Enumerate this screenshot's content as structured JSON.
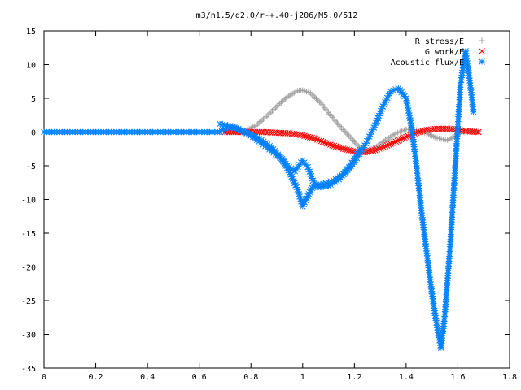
{
  "chart_data": {
    "type": "scatter",
    "title": "m3/n1.5/q2.0/r-+.40-j206/M5.0/512",
    "xlabel": "",
    "ylabel": "",
    "xlim": [
      0,
      1.8
    ],
    "ylim": [
      -35,
      15
    ],
    "grid": false,
    "legend": "top-right",
    "x_ticks": [
      {
        "value": 0,
        "label": "0"
      },
      {
        "value": 0.2,
        "label": "0.2"
      },
      {
        "value": 0.4,
        "label": "0.4"
      },
      {
        "value": 0.6,
        "label": "0.6"
      },
      {
        "value": 0.8,
        "label": "0.8"
      },
      {
        "value": 1.0,
        "label": "1"
      },
      {
        "value": 1.2,
        "label": "1.2"
      },
      {
        "value": 1.4,
        "label": "1.4"
      },
      {
        "value": 1.6,
        "label": "1.6"
      },
      {
        "value": 1.8,
        "label": "1.8"
      }
    ],
    "y_ticks": [
      {
        "value": 15,
        "label": "15"
      },
      {
        "value": 10,
        "label": "10"
      },
      {
        "value": 5,
        "label": "5"
      },
      {
        "value": 0,
        "label": "0"
      },
      {
        "value": -5,
        "label": "-5"
      },
      {
        "value": -10,
        "label": "-10"
      },
      {
        "value": -15,
        "label": "-15"
      },
      {
        "value": -20,
        "label": "-20"
      },
      {
        "value": -25,
        "label": "-25"
      },
      {
        "value": -30,
        "label": "-30"
      },
      {
        "value": -35,
        "label": "-35"
      }
    ],
    "series": [
      {
        "name": "R stress/E",
        "marker": "plus",
        "color": "#a0a0a0",
        "points": [
          [
            0.7,
            0
          ],
          [
            0.74,
            0
          ],
          [
            0.78,
            0.2
          ],
          [
            0.82,
            1
          ],
          [
            0.86,
            2.3
          ],
          [
            0.9,
            3.8
          ],
          [
            0.94,
            5.2
          ],
          [
            0.98,
            6.1
          ],
          [
            1.0,
            6.2
          ],
          [
            1.03,
            5.8
          ],
          [
            1.07,
            4.3
          ],
          [
            1.11,
            2.4
          ],
          [
            1.15,
            0.6
          ],
          [
            1.19,
            -1
          ],
          [
            1.22,
            -2.3
          ],
          [
            1.25,
            -2.7
          ],
          [
            1.28,
            -2.3
          ],
          [
            1.32,
            -1.2
          ],
          [
            1.36,
            -0.2
          ],
          [
            1.4,
            0.4
          ],
          [
            1.44,
            0.3
          ],
          [
            1.48,
            -0.2
          ],
          [
            1.52,
            -0.9
          ],
          [
            1.56,
            -1.2
          ],
          [
            1.6,
            -0.4
          ],
          [
            1.64,
            0.2
          ],
          [
            1.68,
            0.1
          ]
        ]
      },
      {
        "name": "G work/E",
        "marker": "cross",
        "color": "#ff0000",
        "points": [
          [
            0.7,
            0
          ],
          [
            0.75,
            0
          ],
          [
            0.8,
            0
          ],
          [
            0.85,
            0
          ],
          [
            0.9,
            -0.1
          ],
          [
            0.95,
            -0.2
          ],
          [
            1.0,
            -0.5
          ],
          [
            1.05,
            -1.0
          ],
          [
            1.1,
            -1.8
          ],
          [
            1.15,
            -2.4
          ],
          [
            1.2,
            -2.9
          ],
          [
            1.24,
            -3.0
          ],
          [
            1.28,
            -2.7
          ],
          [
            1.32,
            -2.1
          ],
          [
            1.36,
            -1.4
          ],
          [
            1.4,
            -0.7
          ],
          [
            1.44,
            -0.1
          ],
          [
            1.48,
            0.3
          ],
          [
            1.52,
            0.5
          ],
          [
            1.56,
            0.5
          ],
          [
            1.6,
            0.3
          ],
          [
            1.64,
            0.1
          ],
          [
            1.68,
            0
          ]
        ]
      },
      {
        "name": "Acoustic flux/E",
        "marker": "star",
        "color": "#0080ff",
        "points": [
          [
            0,
            0
          ],
          [
            0.05,
            0
          ],
          [
            0.1,
            0
          ],
          [
            0.15,
            0
          ],
          [
            0.2,
            0
          ],
          [
            0.25,
            0
          ],
          [
            0.3,
            0
          ],
          [
            0.35,
            0
          ],
          [
            0.4,
            0
          ],
          [
            0.45,
            0
          ],
          [
            0.5,
            0
          ],
          [
            0.55,
            0
          ],
          [
            0.6,
            0
          ],
          [
            0.65,
            0
          ],
          [
            0.68,
            0
          ],
          [
            0.7,
            0.5
          ],
          [
            0.73,
            0.7
          ],
          [
            0.76,
            0.3
          ],
          [
            0.8,
            -0.5
          ],
          [
            0.84,
            -1.6
          ],
          [
            0.88,
            -2.8
          ],
          [
            0.92,
            -4.0
          ],
          [
            0.95,
            -6.0
          ],
          [
            0.98,
            -8.5
          ],
          [
            1.0,
            -11.0
          ],
          [
            1.02,
            -9.5
          ],
          [
            1.04,
            -8.0
          ],
          [
            1.08,
            -7.7
          ],
          [
            1.12,
            -7.2
          ],
          [
            1.16,
            -6.2
          ],
          [
            1.2,
            -4.5
          ],
          [
            1.24,
            -2.0
          ],
          [
            1.28,
            1.0
          ],
          [
            1.31,
            3.8
          ],
          [
            1.34,
            6.0
          ],
          [
            1.37,
            6.5
          ],
          [
            1.4,
            5.0
          ],
          [
            1.42,
            1.0
          ],
          [
            1.44,
            -5.0
          ],
          [
            1.46,
            -12.0
          ],
          [
            1.48,
            -18.0
          ],
          [
            1.5,
            -24.0
          ],
          [
            1.52,
            -29.0
          ],
          [
            1.535,
            -32.0
          ],
          [
            1.55,
            -27.0
          ],
          [
            1.57,
            -17.0
          ],
          [
            1.59,
            -5.0
          ],
          [
            1.61,
            7.0
          ],
          [
            1.63,
            12.0
          ],
          [
            1.645,
            8.0
          ],
          [
            1.66,
            3.0
          ]
        ]
      },
      {
        "name": "",
        "marker": "star",
        "color": "#0080ff",
        "points": [
          [
            0.68,
            1.2
          ],
          [
            0.72,
            0.9
          ],
          [
            0.76,
            0.3
          ],
          [
            0.8,
            -0.3
          ],
          [
            0.84,
            -1.2
          ],
          [
            0.88,
            -2.3
          ],
          [
            0.91,
            -3.6
          ],
          [
            0.94,
            -5.0
          ],
          [
            0.97,
            -5.8
          ],
          [
            1.0,
            -4.2
          ],
          [
            1.02,
            -5.2
          ],
          [
            1.04,
            -7.2
          ],
          [
            1.06,
            -8.2
          ],
          [
            1.1,
            -8.0
          ],
          [
            1.14,
            -7.0
          ],
          [
            1.18,
            -5.2
          ],
          [
            1.22,
            -2.6
          ]
        ]
      }
    ]
  }
}
